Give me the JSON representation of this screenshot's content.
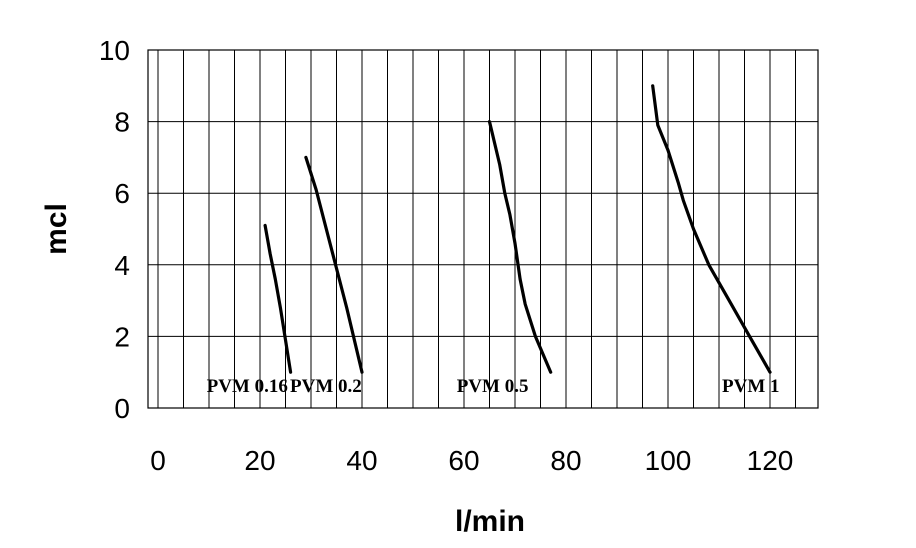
{
  "chart_data": {
    "type": "line",
    "title": "",
    "xlabel": "l/min",
    "ylabel": "mcl",
    "xlim": [
      0,
      130
    ],
    "ylim": [
      0,
      10
    ],
    "x_ticks": [
      "0",
      "20",
      "40",
      "60",
      "80",
      "100",
      "120"
    ],
    "y_ticks": [
      "0",
      "2",
      "4",
      "6",
      "8",
      "10"
    ],
    "grid": true,
    "series": [
      {
        "name": "PVM 0.16",
        "x": [
          21,
          22,
          23,
          24,
          25,
          26
        ],
        "y": [
          5.1,
          4.3,
          3.6,
          2.8,
          1.9,
          1.0
        ]
      },
      {
        "name": "PVM 0.2",
        "x": [
          29,
          31,
          33,
          35,
          37,
          40
        ],
        "y": [
          7.0,
          6.1,
          5.0,
          3.9,
          2.8,
          1.0
        ]
      },
      {
        "name": "PVM 0.5",
        "x": [
          65,
          67,
          68,
          69,
          70,
          71,
          72,
          74,
          77
        ],
        "y": [
          8.0,
          6.8,
          6.0,
          5.4,
          4.6,
          3.6,
          2.9,
          2.0,
          1.0
        ]
      },
      {
        "name": "PVM 1",
        "x": [
          97,
          98,
          100,
          102,
          103,
          105,
          108,
          112,
          116,
          120
        ],
        "y": [
          9.0,
          7.9,
          7.2,
          6.3,
          5.8,
          5.0,
          4.0,
          3.0,
          2.0,
          1.0
        ]
      }
    ],
    "annotations": [
      {
        "text": "PVM 0.16",
        "series": 0
      },
      {
        "text": "PVM 0.2",
        "series": 1
      },
      {
        "text": "PVM 0.5",
        "series": 2
      },
      {
        "text": "PVM 1",
        "series": 3
      }
    ]
  }
}
